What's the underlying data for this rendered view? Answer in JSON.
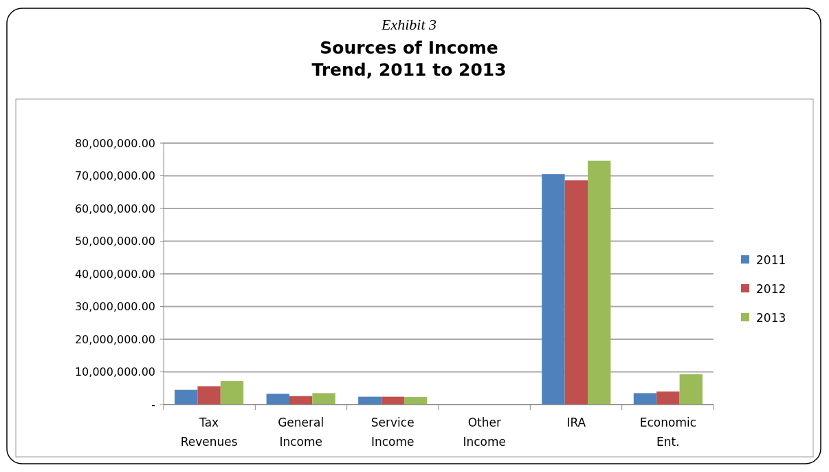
{
  "chart_data": {
    "type": "bar",
    "title": "Sources of Income\nTrend, 2011 to 2013",
    "annotations": [
      "Exhibit 3"
    ],
    "categories": [
      "Tax Revenues",
      "General Income",
      "Service Income",
      "Other Income",
      "IRA",
      "Economic Ent."
    ],
    "series": [
      {
        "name": "2011",
        "color": "#4f81bd",
        "values": [
          4500000,
          3300000,
          2400000,
          0,
          70500000,
          3500000
        ]
      },
      {
        "name": "2012",
        "color": "#c0504d",
        "values": [
          5600000,
          2600000,
          2400000,
          0,
          68600000,
          4000000
        ]
      },
      {
        "name": "2013",
        "color": "#9bbb59",
        "values": [
          7200000,
          3500000,
          2300000,
          0,
          74600000,
          9300000
        ]
      }
    ],
    "ylim": [
      0,
      80000000
    ],
    "yticks": [
      {
        "value": 0,
        "label": "-"
      },
      {
        "value": 10000000,
        "label": "10,000,000.00"
      },
      {
        "value": 20000000,
        "label": "20,000,000.00"
      },
      {
        "value": 30000000,
        "label": "30,000,000.00"
      },
      {
        "value": 40000000,
        "label": "40,000,000.00"
      },
      {
        "value": 50000000,
        "label": "50,000,000.00"
      },
      {
        "value": 60000000,
        "label": "60,000,000.00"
      },
      {
        "value": 70000000,
        "label": "70,000,000.00"
      },
      {
        "value": 80000000,
        "label": "80,000,000.00"
      }
    ],
    "grid": "y",
    "legend": "right"
  }
}
